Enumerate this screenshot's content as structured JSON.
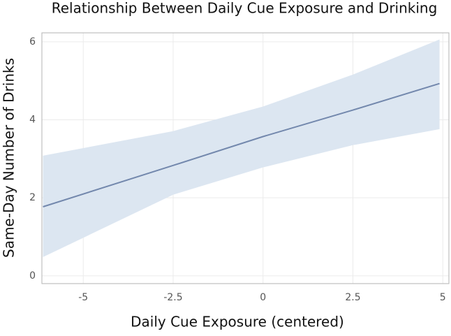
{
  "chart_data": {
    "type": "line",
    "title": "Relationship Between Daily Cue Exposure and Drinking",
    "x_label": "Daily Cue Exposure (centered)",
    "y_label": "Same-Day Number of Drinks",
    "x": [
      -6.12,
      -2.5,
      0,
      2.5,
      4.91
    ],
    "values": [
      1.77,
      2.83,
      3.57,
      4.25,
      4.93
    ],
    "lower": [
      0.48,
      2.08,
      2.78,
      3.35,
      3.76
    ],
    "upper": [
      3.08,
      3.71,
      4.34,
      5.16,
      6.06
    ],
    "color": "#7388ad",
    "band_color": "#dce6f1",
    "xlim": [
      -6.15,
      5.17
    ],
    "ylim": [
      -0.2,
      6.23
    ],
    "xticks": [
      -5,
      -2.5,
      0,
      2.5,
      5
    ],
    "yticks": [
      0,
      2,
      4,
      6
    ],
    "grid": true
  }
}
